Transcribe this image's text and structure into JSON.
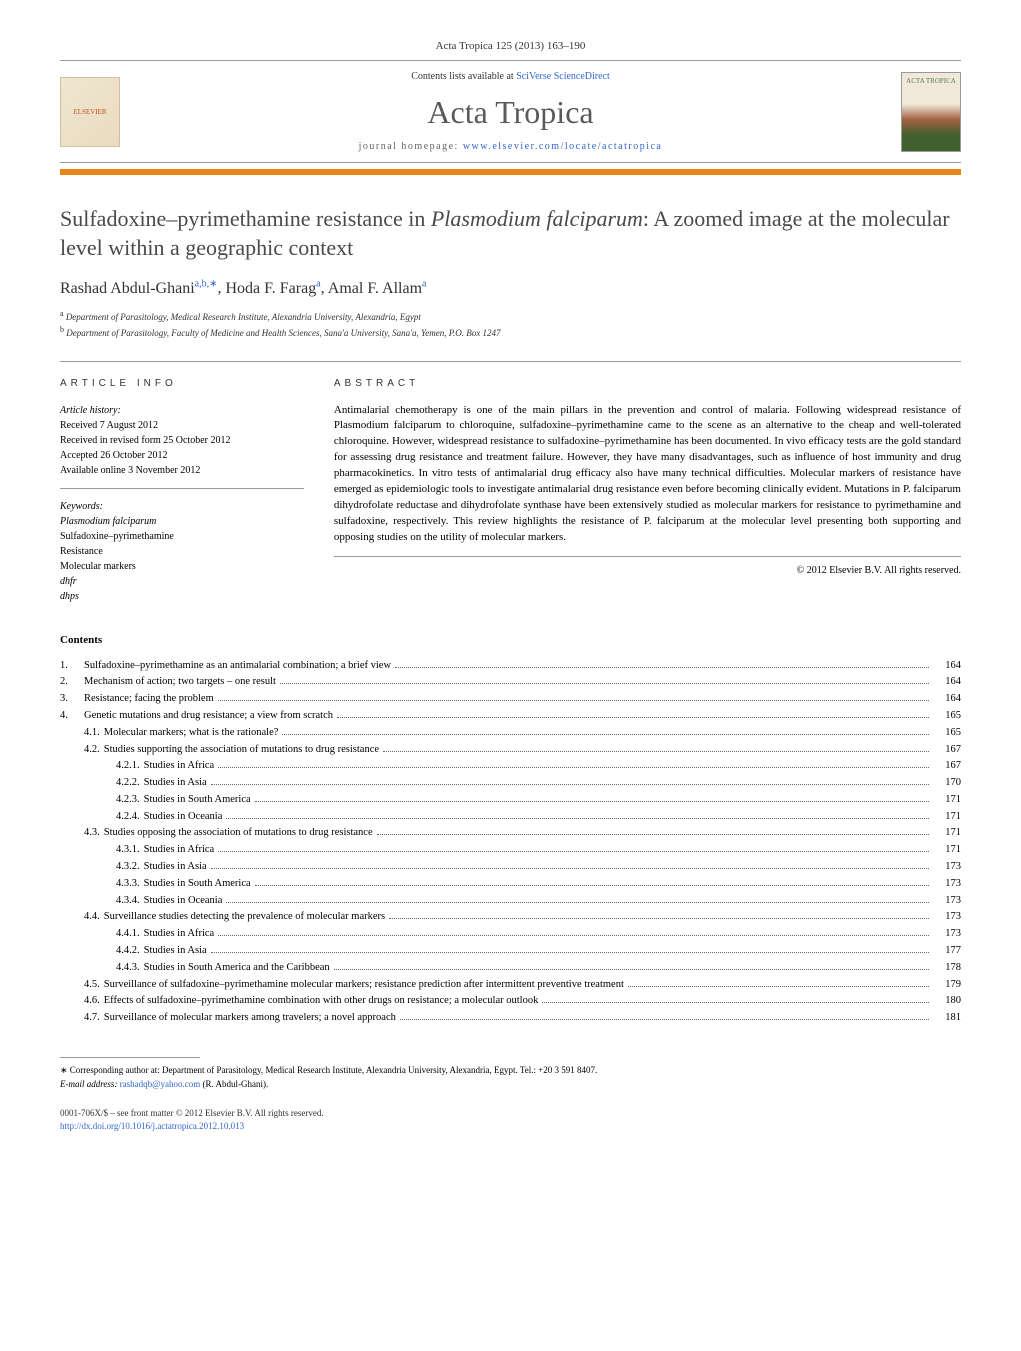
{
  "journal_ref": "Acta Tropica 125 (2013) 163–190",
  "header": {
    "contents_text": "Contents lists available at ",
    "contents_link": "SciVerse ScienceDirect",
    "journal_title": "Acta Tropica",
    "homepage_label": "journal homepage: ",
    "homepage_link": "www.elsevier.com/locate/actatropica",
    "publisher_name": "ELSEVIER",
    "cover_text": "ACTA TROPICA"
  },
  "colors": {
    "orange_bar": "#e8841a",
    "link": "#3366cc",
    "title_gray": "#4a4a4a"
  },
  "article": {
    "title_part1": "Sulfadoxine–pyrimethamine resistance in ",
    "title_italic": "Plasmodium falciparum",
    "title_part2": ": A zoomed image at the molecular level within a geographic context",
    "authors": [
      {
        "name": "Rashad Abdul-Ghani",
        "sup": "a,b,∗"
      },
      {
        "name": "Hoda F. Farag",
        "sup": "a"
      },
      {
        "name": "Amal F. Allam",
        "sup": "a"
      }
    ],
    "affiliations": [
      {
        "sup": "a",
        "text": "Department of Parasitology, Medical Research Institute, Alexandria University, Alexandria, Egypt"
      },
      {
        "sup": "b",
        "text": "Department of Parasitology, Faculty of Medicine and Health Sciences, Sana'a University, Sana'a, Yemen, P.O. Box 1247"
      }
    ]
  },
  "article_info": {
    "heading": "article info",
    "history_label": "Article history:",
    "history": [
      "Received 7 August 2012",
      "Received in revised form 25 October 2012",
      "Accepted 26 October 2012",
      "Available online 3 November 2012"
    ],
    "keywords_label": "Keywords:",
    "keywords": [
      "Plasmodium falciparum",
      "Sulfadoxine–pyrimethamine",
      "Resistance",
      "Molecular markers",
      "dhfr",
      "dhps"
    ]
  },
  "abstract": {
    "heading": "abstract",
    "text": "Antimalarial chemotherapy is one of the main pillars in the prevention and control of malaria. Following widespread resistance of Plasmodium falciparum to chloroquine, sulfadoxine–pyrimethamine came to the scene as an alternative to the cheap and well-tolerated chloroquine. However, widespread resistance to sulfadoxine–pyrimethamine has been documented. In vivo efficacy tests are the gold standard for assessing drug resistance and treatment failure. However, they have many disadvantages, such as influence of host immunity and drug pharmacokinetics. In vitro tests of antimalarial drug efficacy also have many technical difficulties. Molecular markers of resistance have emerged as epidemiologic tools to investigate antimalarial drug resistance even before becoming clinically evident. Mutations in P. falciparum dihydrofolate reductase and dihydrofolate synthase have been extensively studied as molecular markers for resistance to pyrimethamine and sulfadoxine, respectively. This review highlights the resistance of P. falciparum at the molecular level presenting both supporting and opposing studies on the utility of molecular markers.",
    "copyright": "© 2012 Elsevier B.V. All rights reserved."
  },
  "contents": {
    "heading": "Contents",
    "items": [
      {
        "level": 1,
        "num": "1.",
        "title": "Sulfadoxine–pyrimethamine as an antimalarial combination; a brief view",
        "page": "164"
      },
      {
        "level": 1,
        "num": "2.",
        "title": "Mechanism of action; two targets – one result",
        "page": "164"
      },
      {
        "level": 1,
        "num": "3.",
        "title": "Resistance; facing the problem",
        "page": "164"
      },
      {
        "level": 1,
        "num": "4.",
        "title": "Genetic mutations and drug resistance; a view from scratch",
        "page": "165"
      },
      {
        "level": 2,
        "num": "4.1.",
        "title": "Molecular markers; what is the rationale?",
        "page": "165"
      },
      {
        "level": 2,
        "num": "4.2.",
        "title": "Studies supporting the association of mutations to drug resistance",
        "page": "167"
      },
      {
        "level": 3,
        "num": "4.2.1.",
        "title": "Studies in Africa",
        "page": "167"
      },
      {
        "level": 3,
        "num": "4.2.2.",
        "title": "Studies in Asia",
        "page": "170"
      },
      {
        "level": 3,
        "num": "4.2.3.",
        "title": "Studies in South America",
        "page": "171"
      },
      {
        "level": 3,
        "num": "4.2.4.",
        "title": "Studies in Oceania",
        "page": "171"
      },
      {
        "level": 2,
        "num": "4.3.",
        "title": "Studies opposing the association of mutations to drug resistance",
        "page": "171"
      },
      {
        "level": 3,
        "num": "4.3.1.",
        "title": "Studies in Africa",
        "page": "171"
      },
      {
        "level": 3,
        "num": "4.3.2.",
        "title": "Studies in Asia",
        "page": "173"
      },
      {
        "level": 3,
        "num": "4.3.3.",
        "title": "Studies in South America",
        "page": "173"
      },
      {
        "level": 3,
        "num": "4.3.4.",
        "title": "Studies in Oceania",
        "page": "173"
      },
      {
        "level": 2,
        "num": "4.4.",
        "title": "Surveillance studies detecting the prevalence of molecular markers",
        "page": "173"
      },
      {
        "level": 3,
        "num": "4.4.1.",
        "title": "Studies in Africa",
        "page": "173"
      },
      {
        "level": 3,
        "num": "4.4.2.",
        "title": "Studies in Asia",
        "page": "177"
      },
      {
        "level": 3,
        "num": "4.4.3.",
        "title": "Studies in South America and the Caribbean",
        "page": "178"
      },
      {
        "level": 2,
        "num": "4.5.",
        "title": "Surveillance of sulfadoxine–pyrimethamine molecular markers; resistance prediction after intermittent preventive treatment",
        "page": "179"
      },
      {
        "level": 2,
        "num": "4.6.",
        "title": "Effects of sulfadoxine–pyrimethamine combination with other drugs on resistance; a molecular outlook",
        "page": "180"
      },
      {
        "level": 2,
        "num": "4.7.",
        "title": "Surveillance of molecular markers among travelers; a novel approach",
        "page": "181"
      }
    ]
  },
  "footnotes": {
    "corresponding": "∗ Corresponding author at: Department of Parasitology, Medical Research Institute, Alexandria University, Alexandria, Egypt. Tel.: +20 3 591 8407.",
    "email_label": "E-mail address: ",
    "email": "rashadqb@yahoo.com",
    "email_suffix": " (R. Abdul-Ghani)."
  },
  "footer": {
    "issn": "0001-706X/$ – see front matter © 2012 Elsevier B.V. All rights reserved.",
    "doi_label": "http://dx.doi.org/",
    "doi": "10.1016/j.actatropica.2012.10.013"
  }
}
